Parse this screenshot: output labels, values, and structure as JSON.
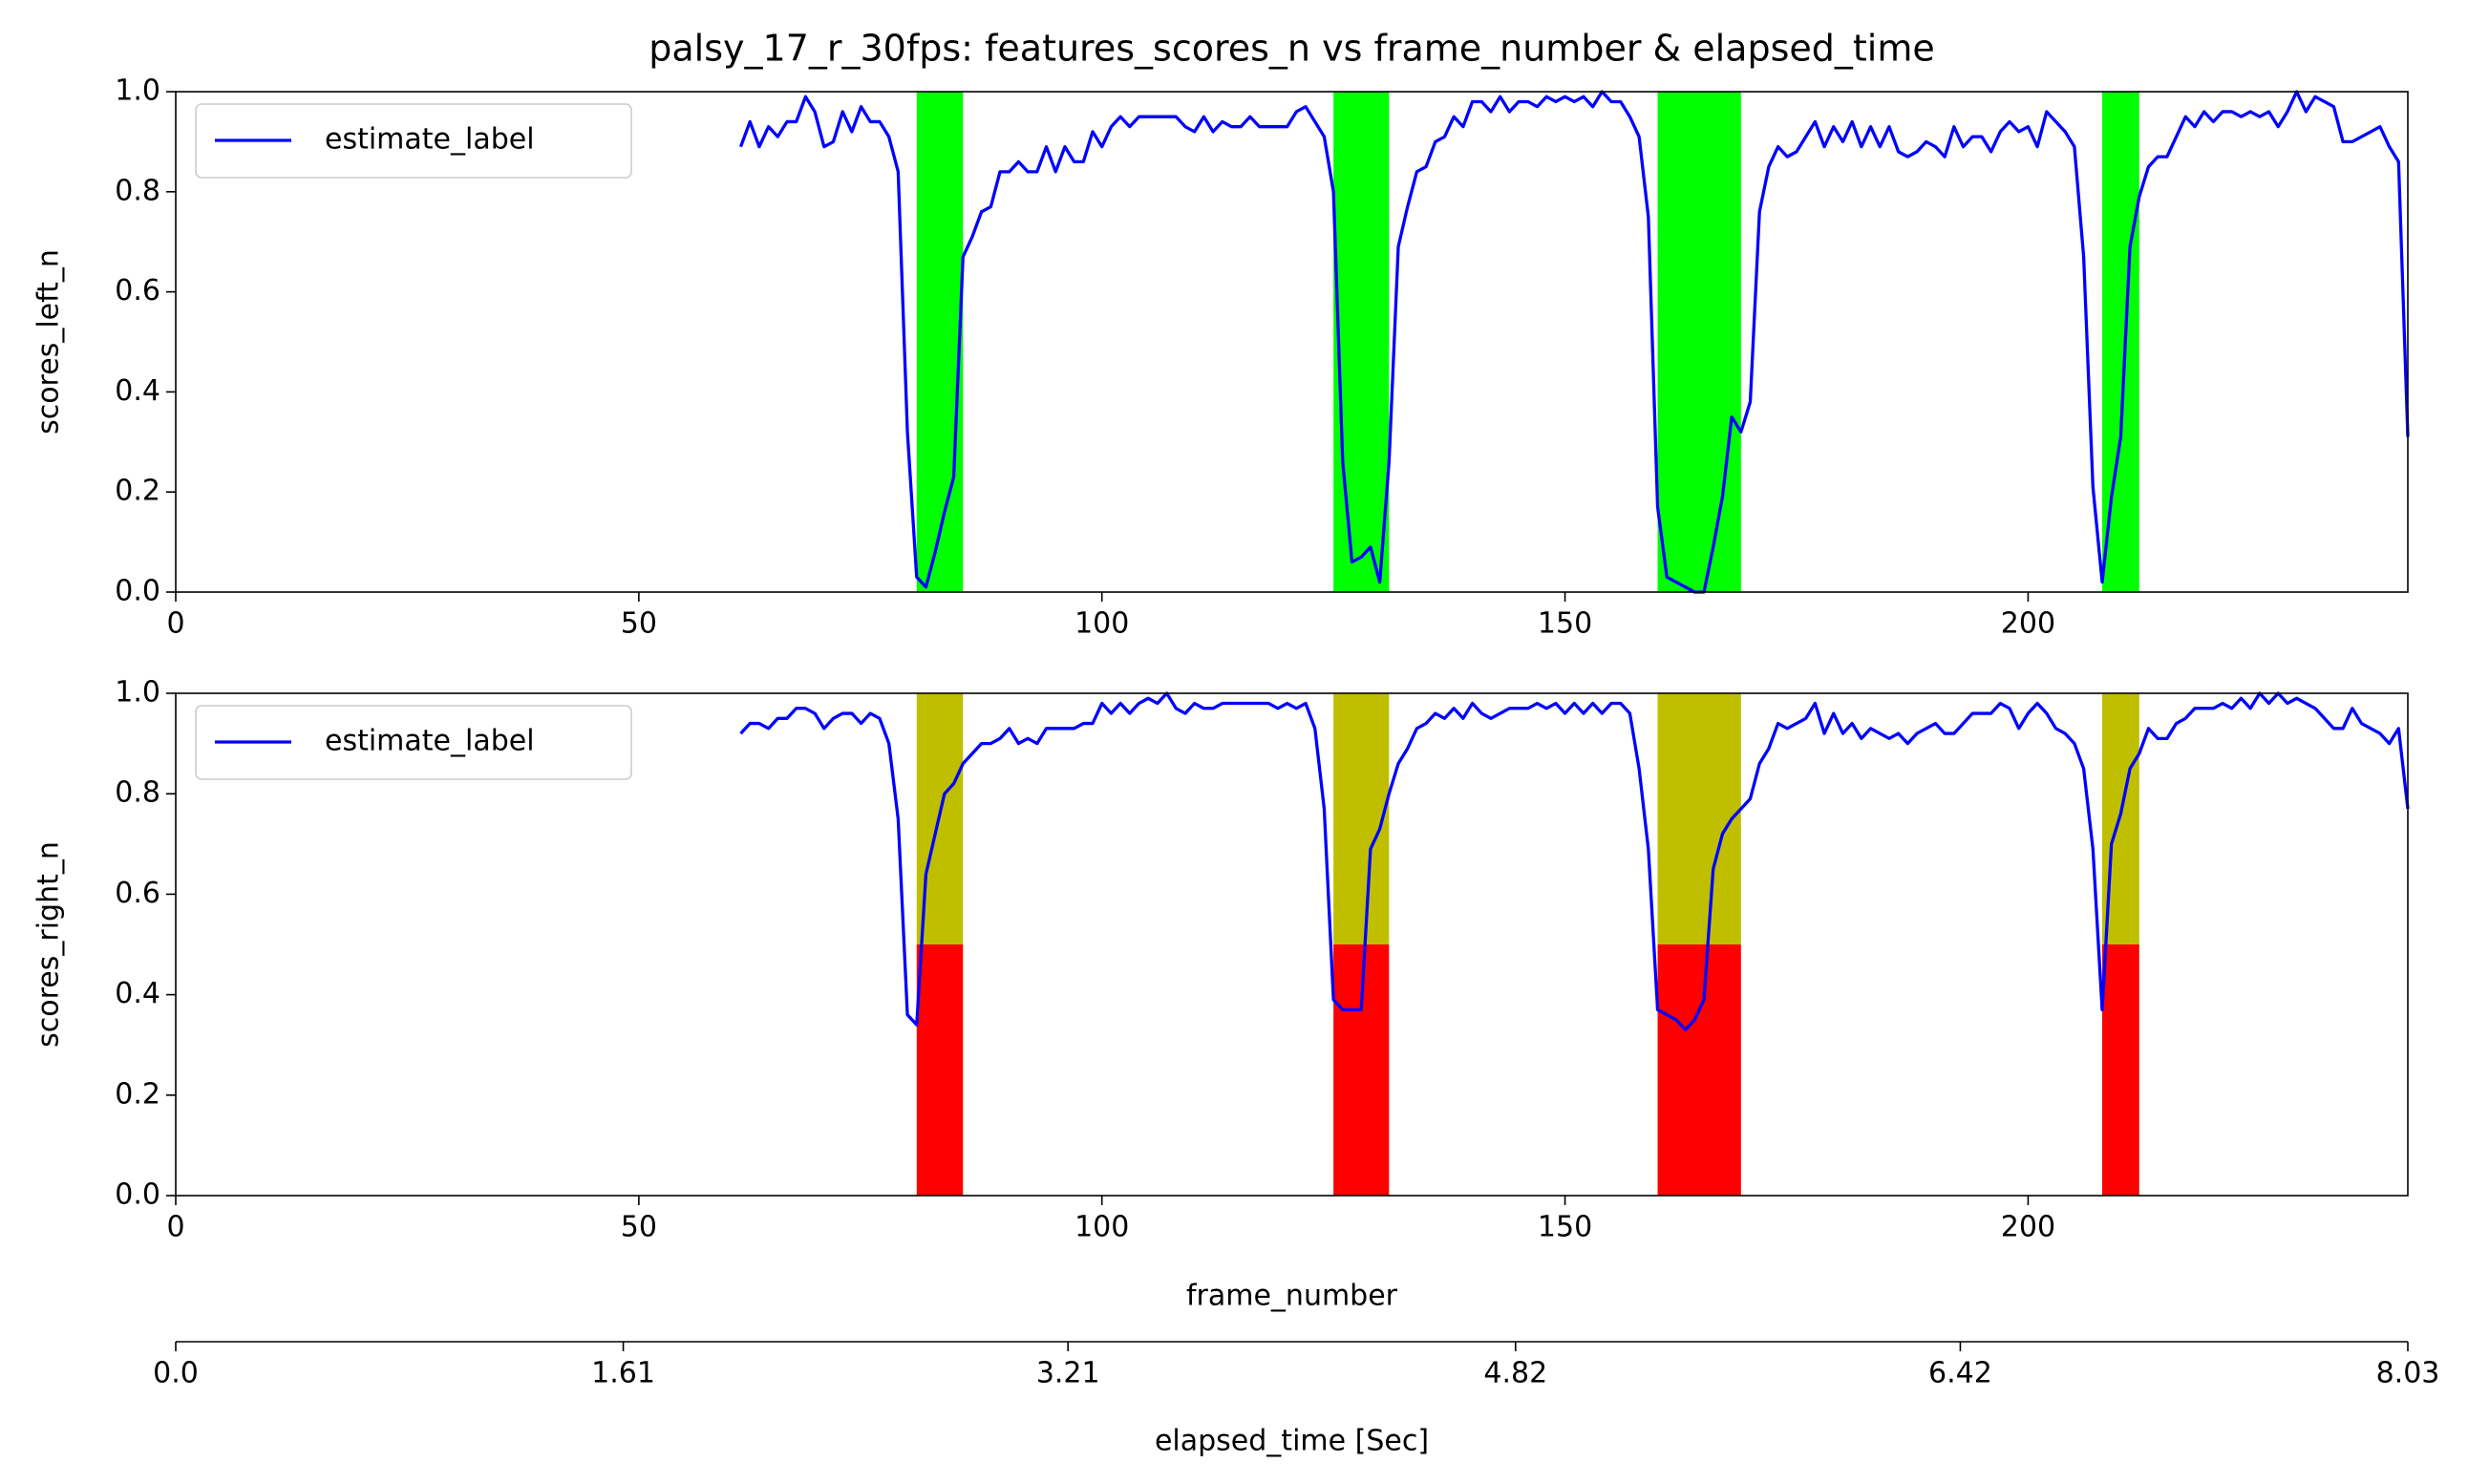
{
  "chart_data": [
    {
      "type": "line",
      "title": "palsy_17_r_30fps: features_scores_n vs frame_number & elapsed_time",
      "ylabel": "scores_left_n",
      "xlim": [
        0,
        241
      ],
      "xticks": [
        0,
        50,
        100,
        150,
        200
      ],
      "ylim": [
        0,
        1
      ],
      "yticks": [
        {
          "value": 0,
          "label": "0.0"
        },
        0.2,
        0.4,
        0.6,
        0.8,
        {
          "value": 1,
          "label": "1.0"
        }
      ],
      "legend": "upper left",
      "spans": [
        {
          "start": 80,
          "end": 85,
          "ymin": 0,
          "ymax": 1,
          "color": "#00ff00"
        },
        {
          "start": 125,
          "end": 131,
          "ymin": 0,
          "ymax": 1,
          "color": "#00ff00"
        },
        {
          "start": 160,
          "end": 169,
          "ymin": 0,
          "ymax": 1,
          "color": "#00ff00"
        },
        {
          "start": 208,
          "end": 212,
          "ymin": 0,
          "ymax": 1,
          "color": "#00ff00"
        }
      ],
      "x": [
        61,
        62,
        63,
        64,
        65,
        66,
        67,
        68,
        69,
        70,
        71,
        72,
        73,
        74,
        75,
        76,
        77,
        78,
        79,
        80,
        81,
        82,
        83,
        84,
        85,
        86,
        87,
        88,
        89,
        90,
        91,
        92,
        93,
        94,
        95,
        96,
        97,
        98,
        99,
        100,
        101,
        102,
        103,
        104,
        105,
        106,
        107,
        108,
        109,
        110,
        111,
        112,
        113,
        114,
        115,
        116,
        117,
        118,
        119,
        120,
        121,
        122,
        123,
        124,
        125,
        126,
        127,
        128,
        129,
        130,
        131,
        132,
        133,
        134,
        135,
        136,
        137,
        138,
        139,
        140,
        141,
        142,
        143,
        144,
        145,
        146,
        147,
        148,
        149,
        150,
        151,
        152,
        153,
        154,
        155,
        156,
        157,
        158,
        159,
        160,
        161,
        162,
        163,
        164,
        165,
        166,
        167,
        168,
        169,
        170,
        171,
        172,
        173,
        174,
        175,
        176,
        177,
        178,
        179,
        180,
        181,
        182,
        183,
        184,
        185,
        186,
        187,
        188,
        189,
        190,
        191,
        192,
        193,
        194,
        195,
        196,
        197,
        198,
        199,
        200,
        201,
        202,
        203,
        204,
        205,
        206,
        207,
        208,
        209,
        210,
        211,
        212,
        213,
        214,
        215,
        216,
        217,
        218,
        219,
        220,
        221,
        222,
        223,
        224,
        225,
        226,
        227,
        228,
        229,
        230,
        231,
        232,
        233,
        234,
        235,
        236,
        237,
        238,
        239,
        240,
        241
      ],
      "series": [
        {
          "name": "estimate_label",
          "color": "#0000ff",
          "values": [
            0.89,
            0.94,
            0.89,
            0.93,
            0.91,
            0.94,
            0.94,
            0.99,
            0.96,
            0.89,
            0.9,
            0.96,
            0.92,
            0.97,
            0.94,
            0.94,
            0.91,
            0.84,
            0.32,
            0.03,
            0.01,
            0.08,
            0.16,
            0.23,
            0.67,
            0.71,
            0.76,
            0.77,
            0.84,
            0.84,
            0.86,
            0.84,
            0.84,
            0.89,
            0.84,
            0.89,
            0.86,
            0.86,
            0.92,
            0.89,
            0.93,
            0.95,
            0.93,
            0.95,
            0.95,
            0.95,
            0.95,
            0.95,
            0.93,
            0.92,
            0.95,
            0.92,
            0.94,
            0.93,
            0.93,
            0.95,
            0.93,
            0.93,
            0.93,
            0.93,
            0.96,
            0.97,
            0.94,
            0.91,
            0.8,
            0.26,
            0.06,
            0.07,
            0.09,
            0.02,
            0.26,
            0.69,
            0.77,
            0.84,
            0.85,
            0.9,
            0.91,
            0.95,
            0.93,
            0.98,
            0.98,
            0.96,
            0.99,
            0.96,
            0.98,
            0.98,
            0.97,
            0.99,
            0.98,
            0.99,
            0.98,
            0.99,
            0.97,
            1.0,
            0.98,
            0.98,
            0.95,
            0.91,
            0.75,
            0.17,
            0.03,
            0.02,
            0.01,
            0.0,
            0.0,
            0.09,
            0.19,
            0.35,
            0.32,
            0.38,
            0.76,
            0.85,
            0.89,
            0.87,
            0.88,
            0.91,
            0.94,
            0.89,
            0.93,
            0.9,
            0.94,
            0.89,
            0.93,
            0.89,
            0.93,
            0.88,
            0.87,
            0.88,
            0.9,
            0.89,
            0.87,
            0.93,
            0.89,
            0.91,
            0.91,
            0.88,
            0.92,
            0.94,
            0.92,
            0.93,
            0.89,
            0.96,
            0.94,
            0.92,
            0.89,
            0.67,
            0.21,
            0.02,
            0.19,
            0.31,
            0.69,
            0.79,
            0.85,
            0.87,
            0.87,
            0.91,
            0.95,
            0.93,
            0.96,
            0.94,
            0.96,
            0.96,
            0.95,
            0.96,
            0.95,
            0.96,
            0.93,
            0.96,
            1.0,
            0.96,
            0.99,
            0.98,
            0.97,
            0.9,
            0.9,
            0.91,
            0.92,
            0.93,
            0.89,
            0.86,
            0.31
          ]
        }
      ]
    },
    {
      "type": "line",
      "ylabel": "scores_right_n",
      "xlabel": "frame_number",
      "xlim": [
        0,
        241
      ],
      "xticks": [
        0,
        50,
        100,
        150,
        200
      ],
      "ylim": [
        0,
        1
      ],
      "yticks": [
        {
          "value": 0,
          "label": "0.0"
        },
        0.2,
        0.4,
        0.6,
        0.8,
        {
          "value": 1,
          "label": "1.0"
        }
      ],
      "legend": "upper left",
      "spans": [
        {
          "start": 80,
          "end": 85,
          "ymin": 0,
          "ymax": 0.5,
          "color": "#ff0000"
        },
        {
          "start": 80,
          "end": 85,
          "ymin": 0.5,
          "ymax": 1,
          "color": "#bfbf00"
        },
        {
          "start": 125,
          "end": 131,
          "ymin": 0,
          "ymax": 0.5,
          "color": "#ff0000"
        },
        {
          "start": 125,
          "end": 131,
          "ymin": 0.5,
          "ymax": 1,
          "color": "#bfbf00"
        },
        {
          "start": 160,
          "end": 169,
          "ymin": 0,
          "ymax": 0.5,
          "color": "#ff0000"
        },
        {
          "start": 160,
          "end": 169,
          "ymin": 0.5,
          "ymax": 1,
          "color": "#bfbf00"
        },
        {
          "start": 208,
          "end": 212,
          "ymin": 0,
          "ymax": 0.5,
          "color": "#ff0000"
        },
        {
          "start": 208,
          "end": 212,
          "ymin": 0.5,
          "ymax": 1,
          "color": "#bfbf00"
        }
      ],
      "secondary_x": {
        "label": "elapsed_time [Sec]",
        "xlim": [
          0,
          8.03
        ],
        "xticks": [
          {
            "value": 0,
            "label": "0.0"
          },
          1.61,
          3.21,
          4.82,
          6.42,
          8.03
        ]
      },
      "x": [
        61,
        62,
        63,
        64,
        65,
        66,
        67,
        68,
        69,
        70,
        71,
        72,
        73,
        74,
        75,
        76,
        77,
        78,
        79,
        80,
        81,
        82,
        83,
        84,
        85,
        86,
        87,
        88,
        89,
        90,
        91,
        92,
        93,
        94,
        95,
        96,
        97,
        98,
        99,
        100,
        101,
        102,
        103,
        104,
        105,
        106,
        107,
        108,
        109,
        110,
        111,
        112,
        113,
        114,
        115,
        116,
        117,
        118,
        119,
        120,
        121,
        122,
        123,
        124,
        125,
        126,
        127,
        128,
        129,
        130,
        131,
        132,
        133,
        134,
        135,
        136,
        137,
        138,
        139,
        140,
        141,
        142,
        143,
        144,
        145,
        146,
        147,
        148,
        149,
        150,
        151,
        152,
        153,
        154,
        155,
        156,
        157,
        158,
        159,
        160,
        161,
        162,
        163,
        164,
        165,
        166,
        167,
        168,
        169,
        170,
        171,
        172,
        173,
        174,
        175,
        176,
        177,
        178,
        179,
        180,
        181,
        182,
        183,
        184,
        185,
        186,
        187,
        188,
        189,
        190,
        191,
        192,
        193,
        194,
        195,
        196,
        197,
        198,
        199,
        200,
        201,
        202,
        203,
        204,
        205,
        206,
        207,
        208,
        209,
        210,
        211,
        212,
        213,
        214,
        215,
        216,
        217,
        218,
        219,
        220,
        221,
        222,
        223,
        224,
        225,
        226,
        227,
        228,
        229,
        230,
        231,
        232,
        233,
        234,
        235,
        236,
        237,
        238,
        239,
        240,
        241
      ],
      "series": [
        {
          "name": "estimate_label",
          "color": "#0000ff",
          "values": [
            0.92,
            0.94,
            0.94,
            0.93,
            0.95,
            0.95,
            0.97,
            0.97,
            0.96,
            0.93,
            0.95,
            0.96,
            0.96,
            0.94,
            0.96,
            0.95,
            0.9,
            0.75,
            0.36,
            0.34,
            0.64,
            0.72,
            0.8,
            0.82,
            0.86,
            0.88,
            0.9,
            0.9,
            0.91,
            0.93,
            0.9,
            0.91,
            0.9,
            0.93,
            0.93,
            0.93,
            0.93,
            0.94,
            0.94,
            0.98,
            0.96,
            0.98,
            0.96,
            0.98,
            0.99,
            0.98,
            1.0,
            0.97,
            0.96,
            0.98,
            0.97,
            0.97,
            0.98,
            0.98,
            0.98,
            0.98,
            0.98,
            0.98,
            0.97,
            0.98,
            0.97,
            0.98,
            0.93,
            0.77,
            0.39,
            0.37,
            0.37,
            0.37,
            0.69,
            0.73,
            0.8,
            0.86,
            0.89,
            0.93,
            0.94,
            0.96,
            0.95,
            0.97,
            0.95,
            0.98,
            0.96,
            0.95,
            0.96,
            0.97,
            0.97,
            0.97,
            0.98,
            0.97,
            0.98,
            0.96,
            0.98,
            0.96,
            0.98,
            0.96,
            0.98,
            0.98,
            0.96,
            0.85,
            0.69,
            0.37,
            0.36,
            0.35,
            0.33,
            0.35,
            0.39,
            0.65,
            0.72,
            0.75,
            0.77,
            0.79,
            0.86,
            0.89,
            0.94,
            0.93,
            0.94,
            0.95,
            0.98,
            0.92,
            0.96,
            0.92,
            0.94,
            0.91,
            0.93,
            0.92,
            0.91,
            0.92,
            0.9,
            0.92,
            0.93,
            0.94,
            0.92,
            0.92,
            0.94,
            0.96,
            0.96,
            0.96,
            0.98,
            0.97,
            0.93,
            0.96,
            0.98,
            0.96,
            0.93,
            0.92,
            0.9,
            0.85,
            0.69,
            0.37,
            0.7,
            0.76,
            0.85,
            0.88,
            0.93,
            0.91,
            0.91,
            0.94,
            0.95,
            0.97,
            0.97,
            0.97,
            0.98,
            0.97,
            0.99,
            0.97,
            1.0,
            0.98,
            1.0,
            0.98,
            0.99,
            0.98,
            0.97,
            0.95,
            0.93,
            0.93,
            0.97,
            0.94,
            0.93,
            0.92,
            0.9,
            0.93,
            0.77
          ]
        }
      ]
    }
  ]
}
